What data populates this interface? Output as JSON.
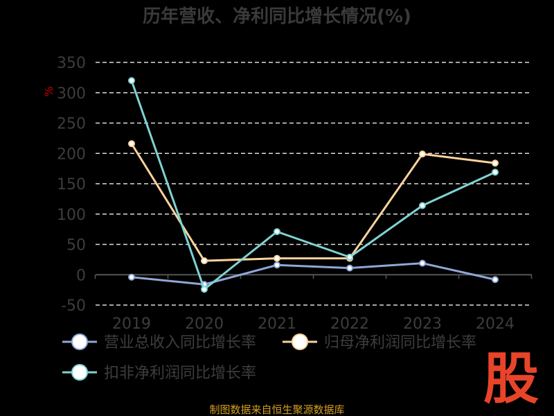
{
  "chart_data": {
    "type": "line",
    "title": "历年营收、净利同比增长情况(%)",
    "ylabel": "%",
    "xlabel": "",
    "categories": [
      "2019",
      "2020",
      "2021",
      "2022",
      "2023",
      "2024"
    ],
    "ylim": [
      -50,
      350
    ],
    "yticks": [
      350,
      300,
      250,
      200,
      150,
      100,
      50,
      0,
      -50
    ],
    "grid": true,
    "legend_position": "bottom",
    "series": [
      {
        "name": "营业总收入同比增长率",
        "color": "#8fa8d8",
        "values": [
          -4,
          -16,
          16,
          11,
          19,
          -8
        ]
      },
      {
        "name": "归母净利润同比增长率",
        "color": "#fcd39c",
        "values": [
          216,
          23,
          27,
          27,
          199,
          184
        ]
      },
      {
        "name": "扣非净利润同比增长率",
        "color": "#7fd3d3",
        "values": [
          320,
          -24,
          71,
          29,
          114,
          169
        ]
      }
    ]
  },
  "source": "制图数据来自恒生聚源数据库",
  "logo": "股"
}
